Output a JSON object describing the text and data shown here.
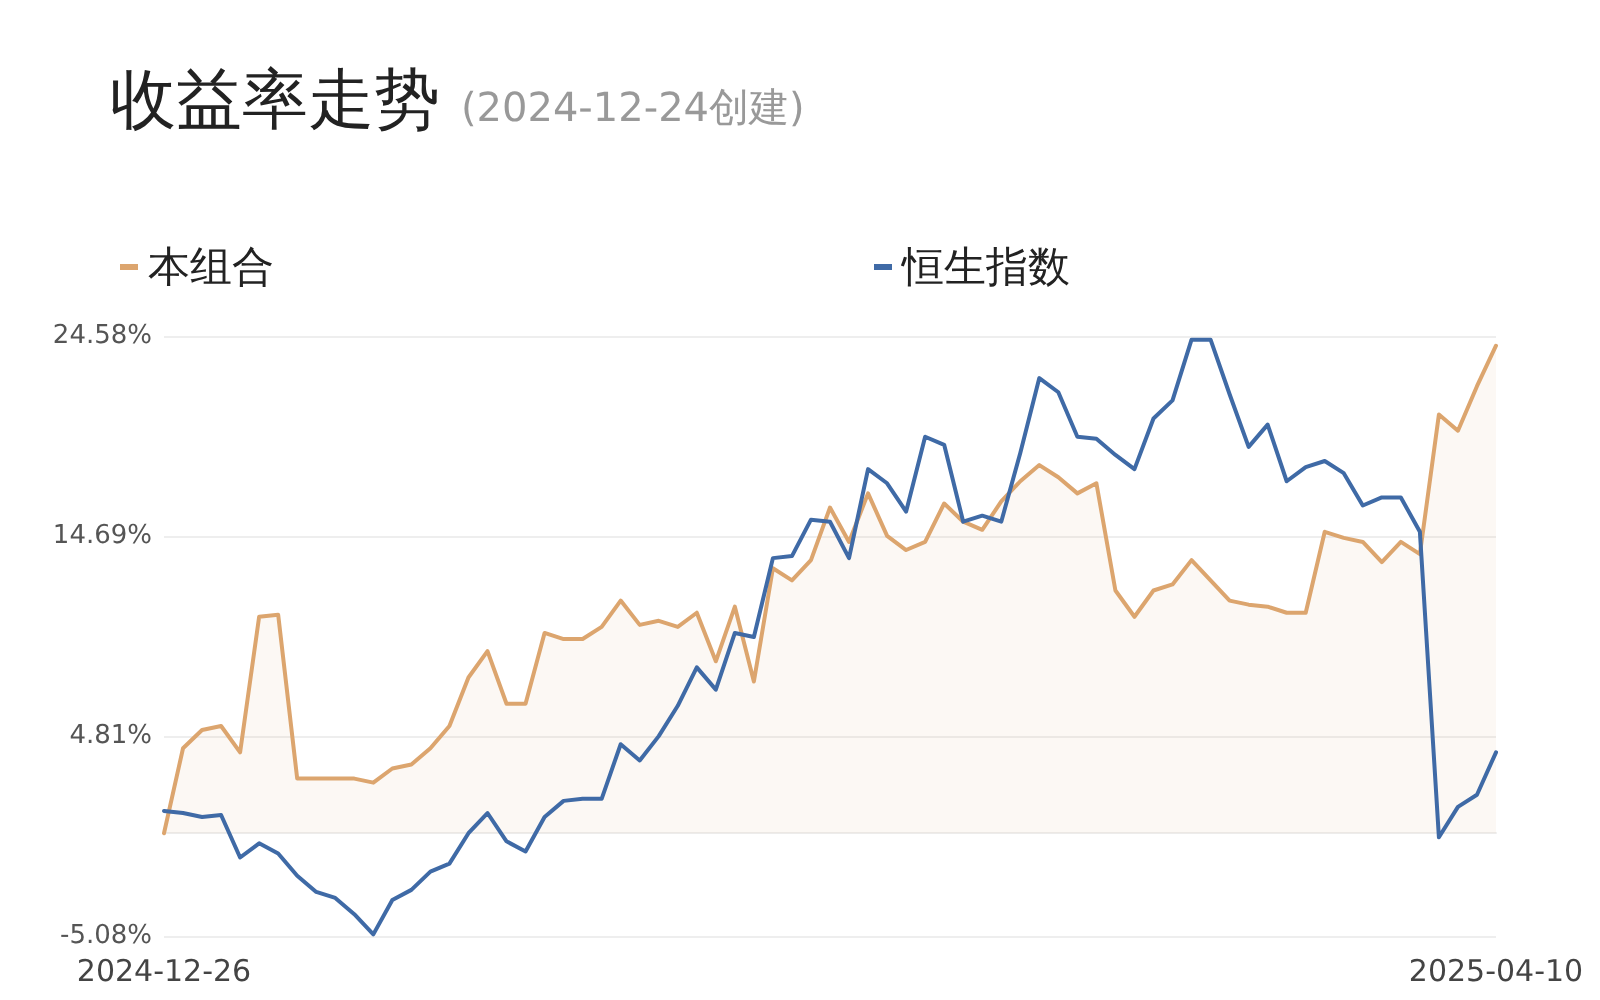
{
  "chart_data": {
    "type": "line",
    "title": "收益率走势",
    "subtitle": "(2024-12-24创建)",
    "categories": [
      "2024-12-26",
      null,
      null,
      null,
      null,
      null,
      null,
      null,
      null,
      null,
      null,
      null,
      null,
      null,
      null,
      null,
      null,
      null,
      null,
      null,
      null,
      null,
      null,
      null,
      null,
      null,
      null,
      null,
      null,
      null,
      null,
      null,
      null,
      null,
      null,
      null,
      null,
      null,
      null,
      null,
      null,
      null,
      null,
      null,
      null,
      null,
      null,
      null,
      null,
      null,
      null,
      null,
      null,
      null,
      null,
      null,
      null,
      null,
      null,
      null,
      null,
      null,
      null,
      null,
      null,
      null,
      null,
      null,
      null,
      null,
      "2025-04-10"
    ],
    "series": [
      {
        "name": "本组合",
        "type": "area",
        "color": "#dca56e",
        "values": [
          0.0,
          4.2,
          5.1,
          5.3,
          4.0,
          10.7,
          10.8,
          2.7,
          2.7,
          2.7,
          2.7,
          2.5,
          3.2,
          3.4,
          4.2,
          5.3,
          7.7,
          9.0,
          6.4,
          6.4,
          9.9,
          9.6,
          9.6,
          10.2,
          11.5,
          10.3,
          10.5,
          10.2,
          10.9,
          8.5,
          11.2,
          7.5,
          13.1,
          12.5,
          13.5,
          16.1,
          14.4,
          16.8,
          14.7,
          14.0,
          14.4,
          16.3,
          15.4,
          15.0,
          16.4,
          17.4,
          18.2,
          17.6,
          16.8,
          17.3,
          12.0,
          10.7,
          12.0,
          12.3,
          13.5,
          12.5,
          11.5,
          11.3,
          11.2,
          10.9,
          10.9,
          14.9,
          14.6,
          14.4,
          13.4,
          14.4,
          13.8,
          20.7,
          19.9,
          22.1,
          24.1
        ]
      },
      {
        "name": "恒生指数",
        "type": "line",
        "color": "#3f6aa6",
        "values": [
          1.1,
          1.0,
          0.8,
          0.9,
          -1.2,
          -0.5,
          -1.0,
          -2.1,
          -2.9,
          -3.2,
          -4.0,
          -5.0,
          -3.3,
          -2.8,
          -1.9,
          -1.5,
          0.0,
          1.0,
          -0.4,
          -0.9,
          0.8,
          1.6,
          1.7,
          1.7,
          4.4,
          3.6,
          4.8,
          6.3,
          8.2,
          7.1,
          9.9,
          9.7,
          13.6,
          13.7,
          15.5,
          15.4,
          13.6,
          18.0,
          17.3,
          15.9,
          19.6,
          19.2,
          15.4,
          15.7,
          15.4,
          18.8,
          22.5,
          21.8,
          19.6,
          19.5,
          18.7,
          18.0,
          20.5,
          21.4,
          24.4,
          24.4,
          21.7,
          19.1,
          20.2,
          17.4,
          18.1,
          18.4,
          17.8,
          16.2,
          16.6,
          16.6,
          14.9,
          -0.2,
          1.3,
          1.9,
          4.0
        ]
      }
    ],
    "ylim": [
      -5.08,
      24.58
    ],
    "yticks": [
      {
        "value": -5.08,
        "label": "-5.08%"
      },
      {
        "value": 4.81,
        "label": "4.81%"
      },
      {
        "value": 14.69,
        "label": "14.69%"
      },
      {
        "value": 24.58,
        "label": "24.58%"
      }
    ],
    "grid": "y",
    "legend": "top",
    "marker": "none",
    "line_style": "solid"
  }
}
